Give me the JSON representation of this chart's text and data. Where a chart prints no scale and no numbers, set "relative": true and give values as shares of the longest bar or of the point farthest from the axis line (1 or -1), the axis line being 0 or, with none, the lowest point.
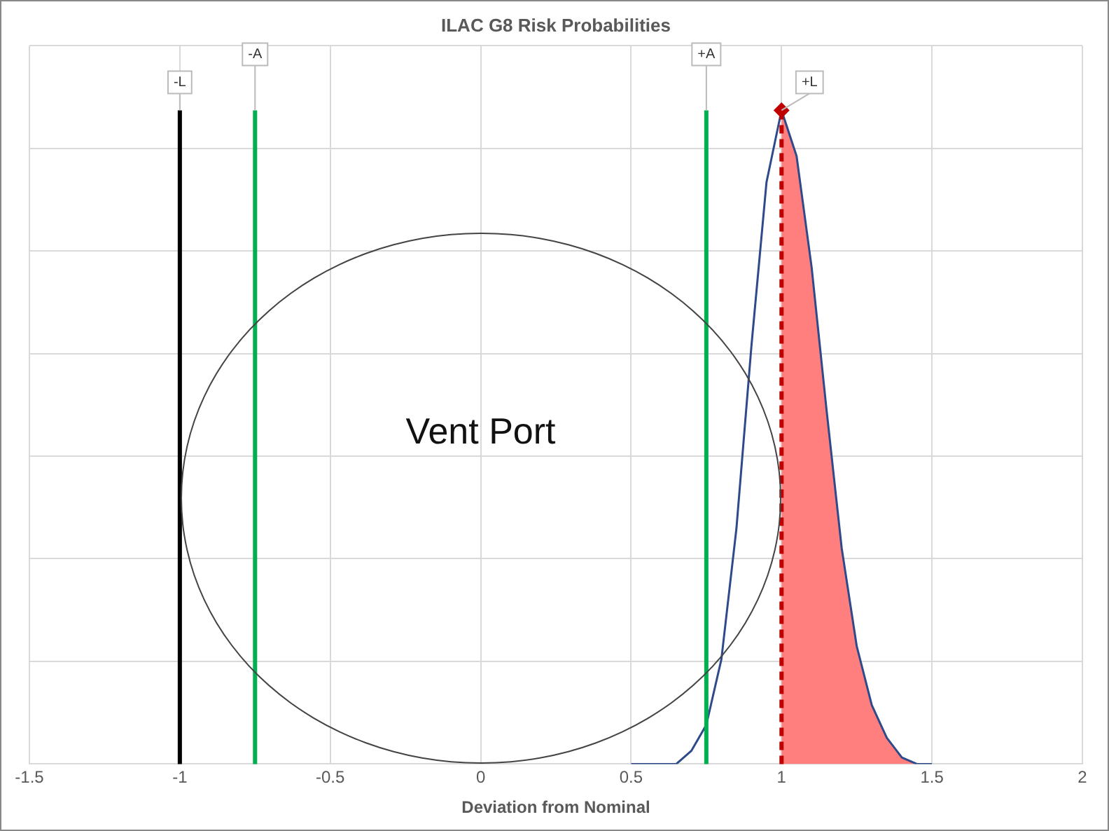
{
  "chart_data": {
    "type": "line",
    "title": "ILAC G8 Risk Probabilities",
    "xlabel": "Deviation from Nominal",
    "relative": true,
    "xlim": [
      -1.5,
      2
    ],
    "xticks": [
      -1.5,
      -1,
      -0.5,
      0,
      0.5,
      1,
      1.5,
      2
    ],
    "grid": true,
    "legend": false,
    "series": [
      {
        "type": "area",
        "color": "#ff7f7f",
        "x": [
          1,
          1.05,
          1.1,
          1.15,
          1.2,
          1.25,
          1.3,
          1.35,
          1.4,
          1.45,
          1.5
        ],
        "values": [
          1,
          0.93,
          0.76,
          0.54,
          0.33,
          0.18,
          0.09,
          0.04,
          0.01,
          0,
          0
        ]
      },
      {
        "type": "line",
        "color": "#2f4a8a",
        "x": [
          0.5,
          0.55,
          0.6,
          0.65,
          0.7,
          0.75,
          0.8,
          0.85,
          0.9,
          0.95,
          1,
          1.05,
          1.1,
          1.15,
          1.2,
          1.25,
          1.3,
          1.35,
          1.4,
          1.45,
          1.5
        ],
        "values": [
          0,
          0,
          0,
          0,
          0.02,
          0.06,
          0.16,
          0.36,
          0.64,
          0.89,
          1,
          0.93,
          0.76,
          0.54,
          0.33,
          0.18,
          0.09,
          0.04,
          0.01,
          0,
          0
        ]
      },
      {
        "type": "scatter",
        "color": "#c00000",
        "marker": "diamond",
        "x": [
          1
        ],
        "values": [
          1
        ]
      }
    ],
    "ref_lines": [
      {
        "axis": "x",
        "value": -1,
        "label": "-L",
        "color": "#000000",
        "line_style": "solid"
      },
      {
        "axis": "x",
        "value": -0.75,
        "label": "-A",
        "color": "#00b050",
        "line_style": "solid"
      },
      {
        "axis": "x",
        "value": 0.75,
        "label": "+A",
        "color": "#00b050",
        "line_style": "solid"
      },
      {
        "axis": "x",
        "value": 1,
        "label": "+L",
        "color": "#c00000",
        "line_style": "dashed"
      }
    ],
    "annotations": [
      "Vent Port"
    ]
  }
}
